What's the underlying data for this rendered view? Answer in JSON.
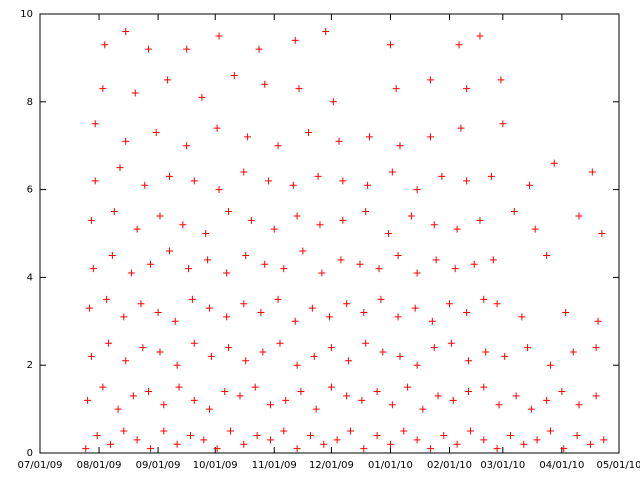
{
  "chart_data": {
    "type": "scatter",
    "x": [
      24,
      30,
      37,
      44,
      51,
      58,
      65,
      72,
      79,
      86,
      93,
      100,
      107,
      114,
      121,
      128,
      135,
      142,
      149,
      156,
      163,
      170,
      177,
      184,
      191,
      198,
      205,
      212,
      219,
      226,
      233,
      240,
      247,
      254,
      261,
      268,
      275,
      282,
      289,
      296,
      25,
      33,
      41,
      49,
      57,
      65,
      73,
      81,
      89,
      97,
      105,
      113,
      121,
      129,
      137,
      145,
      153,
      161,
      169,
      177,
      185,
      193,
      201,
      209,
      217,
      225,
      233,
      241,
      250,
      258,
      266,
      274,
      283,
      292,
      27,
      36,
      45,
      54,
      63,
      72,
      81,
      90,
      99,
      108,
      117,
      126,
      135,
      144,
      153,
      162,
      171,
      180,
      189,
      198,
      207,
      216,
      225,
      234,
      244,
      256,
      268,
      280,
      292,
      26,
      35,
      44,
      53,
      62,
      71,
      80,
      89,
      98,
      107,
      116,
      125,
      134,
      143,
      152,
      161,
      170,
      179,
      188,
      197,
      206,
      215,
      224,
      233,
      240,
      253,
      276,
      293,
      28,
      38,
      48,
      58,
      68,
      78,
      88,
      98,
      108,
      118,
      128,
      138,
      148,
      158,
      168,
      178,
      188,
      198,
      208,
      218,
      228,
      238,
      266,
      27,
      39,
      51,
      63,
      75,
      87,
      99,
      111,
      123,
      135,
      147,
      159,
      171,
      183,
      195,
      207,
      219,
      231,
      249,
      260,
      283,
      295,
      29,
      42,
      55,
      68,
      81,
      94,
      107,
      120,
      133,
      146,
      159,
      172,
      185,
      198,
      211,
      224,
      237,
      257,
      270,
      290,
      29,
      45,
      61,
      77,
      93,
      109,
      125,
      141,
      157,
      173,
      189,
      205,
      221,
      243,
      33,
      50,
      67,
      85,
      102,
      118,
      136,
      154,
      187,
      205,
      224,
      242,
      34,
      45,
      57,
      77,
      94,
      115,
      134,
      150,
      184,
      220,
      231
    ],
    "series": [
      {
        "color": "#ff0000",
        "values": [
          0.1,
          0.4,
          0.2,
          0.5,
          0.3,
          0.1,
          0.5,
          0.2,
          0.4,
          0.3,
          0.1,
          0.5,
          0.2,
          0.4,
          0.3,
          0.5,
          0.1,
          0.4,
          0.2,
          0.3,
          0.5,
          0.1,
          0.4,
          0.2,
          0.5,
          0.3,
          0.1,
          0.4,
          0.2,
          0.5,
          0.3,
          0.1,
          0.4,
          0.2,
          0.3,
          0.5,
          0.1,
          0.4,
          0.2,
          0.3,
          1.2,
          1.5,
          1.0,
          1.3,
          1.4,
          1.1,
          1.5,
          1.2,
          1.0,
          1.4,
          1.3,
          1.5,
          1.1,
          1.2,
          1.4,
          1.0,
          1.5,
          1.3,
          1.2,
          1.4,
          1.1,
          1.5,
          1.0,
          1.3,
          1.2,
          1.4,
          1.5,
          1.1,
          1.3,
          1.0,
          1.2,
          1.4,
          1.1,
          1.3,
          2.2,
          2.5,
          2.1,
          2.4,
          2.3,
          2.0,
          2.5,
          2.2,
          2.4,
          2.1,
          2.3,
          2.5,
          2.0,
          2.2,
          2.4,
          2.1,
          2.5,
          2.3,
          2.2,
          2.0,
          2.4,
          2.5,
          2.1,
          2.3,
          2.2,
          2.4,
          2.0,
          2.3,
          2.4,
          3.3,
          3.5,
          3.1,
          3.4,
          3.2,
          3.0,
          3.5,
          3.3,
          3.1,
          3.4,
          3.2,
          3.5,
          3.0,
          3.3,
          3.1,
          3.4,
          3.2,
          3.5,
          3.1,
          3.3,
          3.0,
          3.4,
          3.2,
          3.5,
          3.4,
          3.1,
          3.2,
          3.0,
          4.2,
          4.5,
          4.1,
          4.3,
          4.6,
          4.2,
          4.4,
          4.1,
          4.5,
          4.3,
          4.2,
          4.6,
          4.1,
          4.4,
          4.3,
          4.2,
          4.5,
          4.1,
          4.4,
          4.2,
          4.3,
          4.4,
          4.5,
          5.3,
          5.5,
          5.1,
          5.4,
          5.2,
          5.0,
          5.5,
          5.3,
          5.1,
          5.4,
          5.2,
          5.3,
          5.5,
          5.0,
          5.4,
          5.2,
          5.1,
          5.3,
          5.5,
          5.1,
          5.4,
          5.0,
          6.2,
          6.5,
          6.1,
          6.3,
          6.2,
          6.0,
          6.4,
          6.2,
          6.1,
          6.3,
          6.2,
          6.1,
          6.4,
          6.0,
          6.3,
          6.2,
          6.3,
          6.1,
          6.6,
          6.4,
          7.5,
          7.1,
          7.3,
          7.0,
          7.4,
          7.2,
          7.0,
          7.3,
          7.1,
          7.2,
          7.0,
          7.2,
          7.4,
          7.5,
          8.3,
          8.2,
          8.5,
          8.1,
          8.6,
          8.4,
          8.3,
          8.0,
          8.3,
          8.5,
          8.3,
          8.5,
          9.3,
          9.6,
          9.2,
          9.2,
          9.5,
          9.2,
          9.4,
          9.6,
          9.3,
          9.3,
          9.5
        ]
      }
    ],
    "xlim": [
      0,
      304
    ],
    "xticks": [
      {
        "value": 0,
        "label": "07/01/09"
      },
      {
        "value": 31,
        "label": "08/01/09"
      },
      {
        "value": 62,
        "label": "09/01/09"
      },
      {
        "value": 92,
        "label": "10/01/09"
      },
      {
        "value": 123,
        "label": "11/01/09"
      },
      {
        "value": 153,
        "label": "12/01/09"
      },
      {
        "value": 184,
        "label": "01/01/10"
      },
      {
        "value": 215,
        "label": "02/01/10"
      },
      {
        "value": 243,
        "label": "03/01/10"
      },
      {
        "value": 274,
        "label": "04/01/10"
      },
      {
        "value": 304,
        "label": "05/01/10"
      }
    ],
    "ylim": [
      0,
      10
    ],
    "yticks": [
      0,
      2,
      4,
      6,
      8,
      10
    ],
    "grid": false
  }
}
